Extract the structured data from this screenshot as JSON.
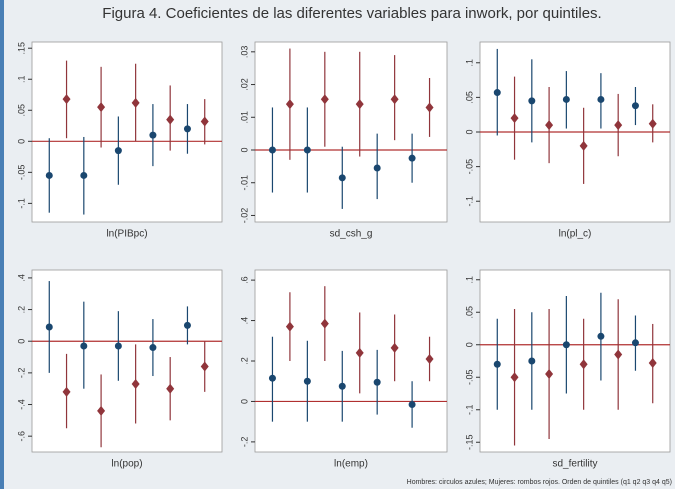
{
  "title": "Figura 4. Coeficientes de las diferentes variables para inwork, por quintiles.",
  "note": "Hombres: circulos azules; Mujeres: rombos rojos. Orden de quintiles (q1 q2 q3 q4 q5)",
  "chart_data": [
    {
      "type": "errorbar",
      "xlabel": "ln(PIBpc)",
      "ylim": [
        -0.13,
        0.16
      ],
      "refline": 0,
      "refline_color": "#b03030",
      "yticks": [
        {
          "value": -0.1,
          "label": "-.1"
        },
        {
          "value": -0.05,
          "label": "-.05"
        },
        0,
        {
          "value": 0.05,
          "label": ".05"
        },
        {
          "value": 0.1,
          "label": ".1"
        },
        {
          "value": 0.15,
          "label": ".15"
        }
      ],
      "series": [
        {
          "color": "#1a476f",
          "marker": "circle",
          "values": [
            -0.055,
            -0.055,
            -0.015,
            0.01,
            0.02
          ],
          "lower": [
            -0.115,
            -0.118,
            -0.07,
            -0.04,
            -0.02
          ],
          "upper": [
            0.005,
            0.007,
            0.04,
            0.06,
            0.06
          ]
        },
        {
          "color": "#90353b",
          "marker": "diamond",
          "values": [
            0.068,
            0.055,
            0.062,
            0.035,
            0.032
          ],
          "lower": [
            0.005,
            -0.01,
            0,
            -0.015,
            -0.005
          ],
          "upper": [
            0.13,
            0.12,
            0.125,
            0.09,
            0.068
          ]
        }
      ]
    },
    {
      "type": "errorbar",
      "xlabel": "sd_csh_g",
      "ylim": [
        -0.022,
        0.033
      ],
      "refline": 0,
      "refline_color": "#b03030",
      "yticks": [
        {
          "value": -0.02,
          "label": "-.02"
        },
        {
          "value": -0.01,
          "label": "-.01"
        },
        0,
        {
          "value": 0.01,
          "label": ".01"
        },
        {
          "value": 0.02,
          "label": ".02"
        },
        {
          "value": 0.03,
          "label": ".03"
        }
      ],
      "series": [
        {
          "color": "#1a476f",
          "marker": "circle",
          "values": [
            0,
            0,
            -0.0085,
            -0.0055,
            -0.0025
          ],
          "lower": [
            -0.013,
            -0.013,
            -0.018,
            -0.015,
            -0.01
          ],
          "upper": [
            0.013,
            0.013,
            0.001,
            0.005,
            0.005
          ]
        },
        {
          "color": "#90353b",
          "marker": "diamond",
          "values": [
            0.014,
            0.0155,
            0.014,
            0.0155,
            0.013
          ],
          "lower": [
            -0.003,
            0.001,
            -0.002,
            0.003,
            0.004
          ],
          "upper": [
            0.031,
            0.03,
            0.03,
            0.029,
            0.022
          ]
        }
      ]
    },
    {
      "type": "errorbar",
      "xlabel": "ln(pl_c)",
      "ylim": [
        -0.13,
        0.13
      ],
      "refline": 0,
      "refline_color": "#b03030",
      "yticks": [
        {
          "value": -0.1,
          "label": "-.1"
        },
        {
          "value": -0.05,
          "label": "-.05"
        },
        0,
        {
          "value": 0.05,
          "label": ".05"
        },
        {
          "value": 0.1,
          "label": ".1"
        }
      ],
      "series": [
        {
          "color": "#1a476f",
          "marker": "circle",
          "values": [
            0.057,
            0.045,
            0.047,
            0.047,
            0.038
          ],
          "lower": [
            -0.005,
            -0.015,
            0.005,
            0.005,
            0.01
          ],
          "upper": [
            0.12,
            0.105,
            0.088,
            0.085,
            0.065
          ]
        },
        {
          "color": "#90353b",
          "marker": "diamond",
          "values": [
            0.02,
            0.01,
            -0.02,
            0.01,
            0.012
          ],
          "lower": [
            -0.04,
            -0.045,
            -0.075,
            -0.035,
            -0.015
          ],
          "upper": [
            0.08,
            0.065,
            0.035,
            0.055,
            0.04
          ]
        }
      ]
    },
    {
      "type": "errorbar",
      "xlabel": "ln(pop)",
      "ylim": [
        -0.7,
        0.45
      ],
      "refline": 0,
      "refline_color": "#b03030",
      "yticks": [
        {
          "value": -0.6,
          "label": "-.6"
        },
        {
          "value": -0.4,
          "label": "-.4"
        },
        {
          "value": -0.2,
          "label": "-.2"
        },
        0,
        {
          "value": 0.2,
          "label": ".2"
        },
        {
          "value": 0.4,
          "label": ".4"
        }
      ],
      "series": [
        {
          "color": "#1a476f",
          "marker": "circle",
          "values": [
            0.09,
            -0.03,
            -0.03,
            -0.04,
            0.1
          ],
          "lower": [
            -0.2,
            -0.3,
            -0.25,
            -0.22,
            -0.02
          ],
          "upper": [
            0.38,
            0.25,
            0.19,
            0.14,
            0.22
          ]
        },
        {
          "color": "#90353b",
          "marker": "diamond",
          "values": [
            -0.32,
            -0.44,
            -0.27,
            -0.3,
            -0.16
          ],
          "lower": [
            -0.55,
            -0.67,
            -0.52,
            -0.5,
            -0.32
          ],
          "upper": [
            -0.08,
            -0.21,
            -0.02,
            -0.1,
            0
          ]
        }
      ]
    },
    {
      "type": "errorbar",
      "xlabel": "ln(emp)",
      "ylim": [
        -0.25,
        0.65
      ],
      "refline": 0,
      "refline_color": "#b03030",
      "yticks": [
        {
          "value": -0.2,
          "label": "-.2"
        },
        0,
        {
          "value": 0.2,
          "label": ".2"
        },
        {
          "value": 0.4,
          "label": ".4"
        },
        {
          "value": 0.6,
          "label": ".6"
        }
      ],
      "series": [
        {
          "color": "#1a476f",
          "marker": "circle",
          "values": [
            0.115,
            0.1,
            0.075,
            0.095,
            -0.015
          ],
          "lower": [
            -0.1,
            -0.1,
            -0.1,
            -0.065,
            -0.13
          ],
          "upper": [
            0.32,
            0.3,
            0.25,
            0.255,
            0.1
          ]
        },
        {
          "color": "#90353b",
          "marker": "diamond",
          "values": [
            0.37,
            0.385,
            0.24,
            0.265,
            0.21
          ],
          "lower": [
            0.2,
            0.2,
            0.04,
            0.1,
            0.1
          ],
          "upper": [
            0.54,
            0.57,
            0.44,
            0.43,
            0.32
          ]
        }
      ]
    },
    {
      "type": "errorbar",
      "xlabel": "sd_fertility",
      "ylim": [
        -0.165,
        0.115
      ],
      "refline": 0,
      "refline_color": "#b03030",
      "yticks": [
        {
          "value": -0.15,
          "label": "-.15"
        },
        {
          "value": -0.1,
          "label": "-.1"
        },
        {
          "value": -0.05,
          "label": "-.05"
        },
        0,
        {
          "value": 0.05,
          "label": ".05"
        },
        {
          "value": 0.1,
          "label": ".1"
        }
      ],
      "series": [
        {
          "color": "#1a476f",
          "marker": "circle",
          "values": [
            -0.03,
            -0.025,
            0,
            0.013,
            0.003
          ],
          "lower": [
            -0.1,
            -0.1,
            -0.075,
            -0.055,
            -0.04
          ],
          "upper": [
            0.04,
            0.05,
            0.075,
            0.08,
            0.045
          ]
        },
        {
          "color": "#90353b",
          "marker": "diamond",
          "values": [
            -0.05,
            -0.045,
            -0.03,
            -0.015,
            -0.028
          ],
          "lower": [
            -0.155,
            -0.145,
            -0.1,
            -0.1,
            -0.09
          ],
          "upper": [
            0.055,
            0.055,
            0.04,
            0.07,
            0.032
          ]
        }
      ]
    }
  ]
}
